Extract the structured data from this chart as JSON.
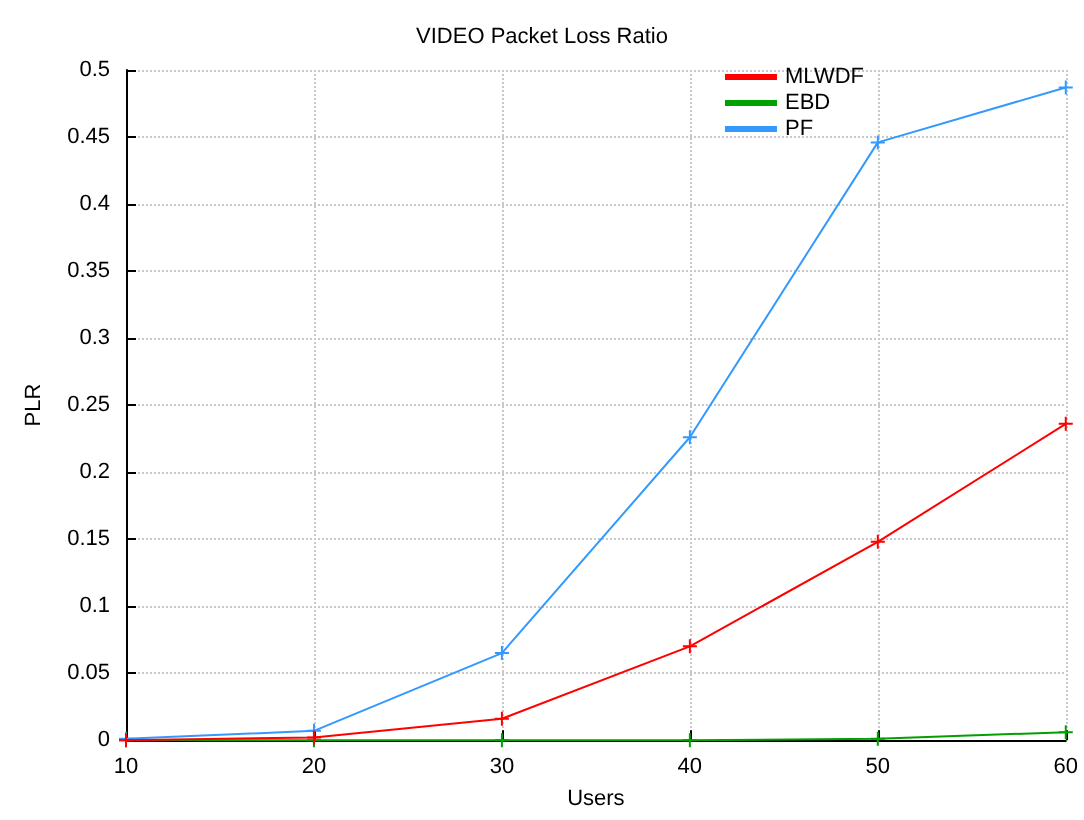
{
  "chart_data": {
    "type": "line",
    "title": "VIDEO Packet Loss Ratio",
    "xlabel": "Users",
    "ylabel": "PLR",
    "x": [
      10,
      20,
      30,
      40,
      50,
      60
    ],
    "series": [
      {
        "name": "MLWDF",
        "color": "#ff0000",
        "values": [
          0,
          0.002,
          0.016,
          0.07,
          0.148,
          0.236
        ]
      },
      {
        "name": "EBD",
        "color": "#00a000",
        "values": [
          0,
          0,
          0,
          0,
          0.001,
          0.006
        ]
      },
      {
        "name": "PF",
        "color": "#3399ff",
        "values": [
          0.001,
          0.007,
          0.065,
          0.226,
          0.446,
          0.487
        ]
      }
    ],
    "xlim": [
      10,
      60
    ],
    "xticks": [
      10,
      20,
      30,
      40,
      50,
      60
    ],
    "ylim": [
      0,
      0.5
    ],
    "yticks": [
      0,
      0.05,
      0.1,
      0.15,
      0.2,
      0.25,
      0.3,
      0.35,
      0.4,
      0.45,
      0.5
    ],
    "grid": true,
    "legend": "top right",
    "marker": "cross",
    "line_style": "solid"
  }
}
